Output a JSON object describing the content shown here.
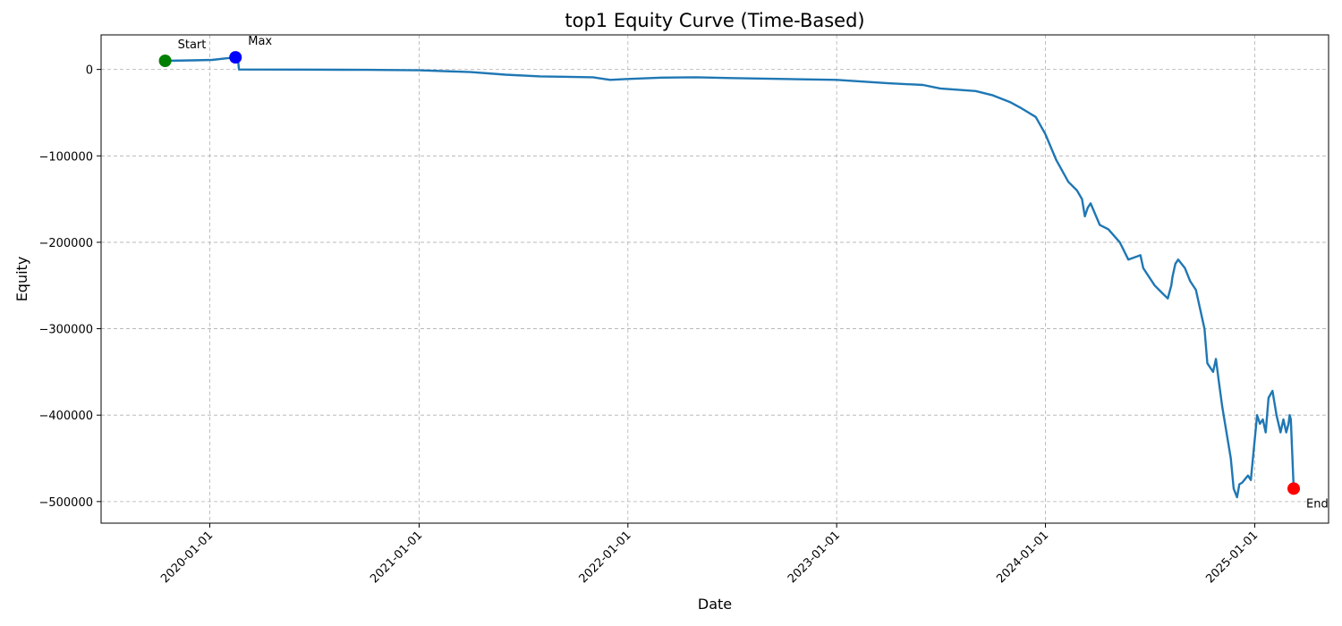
{
  "chart_data": {
    "type": "line",
    "title": "top1 Equity Curve (Time-Based)",
    "xlabel": "Date",
    "ylabel": "Equity",
    "xlim": [
      "2019-06-25",
      "2025-05-10"
    ],
    "ylim": [
      -525000,
      40000
    ],
    "grid": true,
    "x_ticks": [
      "2020-01-01",
      "2021-01-01",
      "2022-01-01",
      "2023-01-01",
      "2024-01-01",
      "2025-01-01"
    ],
    "y_ticks": [
      0,
      -100000,
      -200000,
      -300000,
      -400000,
      -500000
    ],
    "y_tick_labels": [
      "0",
      "−100000",
      "−200000",
      "−300000",
      "−400000",
      "−500000"
    ],
    "line_color": "#1f77b4",
    "series": [
      {
        "x": [
          "2019-10-15",
          "2019-12-01",
          "2020-01-05",
          "2020-02-01",
          "2020-02-19",
          "2020-02-21",
          "2020-06-01",
          "2020-10-01",
          "2021-01-01",
          "2021-04-01",
          "2021-06-01",
          "2021-08-01",
          "2021-11-01",
          "2021-12-01",
          "2022-01-01",
          "2022-03-01",
          "2022-05-01",
          "2022-07-01",
          "2022-10-01",
          "2023-01-01",
          "2023-02-15",
          "2023-04-01",
          "2023-06-01",
          "2023-07-01",
          "2023-09-01",
          "2023-10-01",
          "2023-11-01",
          "2023-11-20",
          "2023-12-15",
          "2024-01-01",
          "2024-01-20",
          "2024-02-10",
          "2024-02-25",
          "2024-03-05",
          "2024-03-10",
          "2024-03-15",
          "2024-03-20",
          "2024-04-05",
          "2024-04-20",
          "2024-05-10",
          "2024-05-25",
          "2024-06-15",
          "2024-06-20",
          "2024-07-10",
          "2024-07-25",
          "2024-08-02",
          "2024-08-08",
          "2024-08-10",
          "2024-08-15",
          "2024-08-20",
          "2024-09-01",
          "2024-09-10",
          "2024-09-20",
          "2024-09-25",
          "2024-10-05",
          "2024-10-10",
          "2024-10-20",
          "2024-10-25",
          "2024-10-30",
          "2024-11-05",
          "2024-11-10",
          "2024-11-15",
          "2024-11-20",
          "2024-11-25",
          "2024-12-01",
          "2024-12-05",
          "2024-12-10",
          "2024-12-20",
          "2024-12-25",
          "2025-01-05",
          "2025-01-10",
          "2025-01-15",
          "2025-01-20",
          "2025-01-25",
          "2025-02-01",
          "2025-02-08",
          "2025-02-15",
          "2025-02-20",
          "2025-02-25",
          "2025-03-01",
          "2025-03-03",
          "2025-03-05",
          "2025-03-10"
        ],
        "y": [
          10000,
          10500,
          11000,
          13000,
          14000,
          0,
          -200,
          -500,
          -1000,
          -3000,
          -6000,
          -8000,
          -9000,
          -12000,
          -11000,
          -9500,
          -9000,
          -10000,
          -11000,
          -12000,
          -14000,
          -16000,
          -18000,
          -22000,
          -25000,
          -30000,
          -38000,
          -45000,
          -55000,
          -75000,
          -105000,
          -130000,
          -140000,
          -150000,
          -170000,
          -160000,
          -155000,
          -180000,
          -185000,
          -200000,
          -220000,
          -215000,
          -230000,
          -250000,
          -260000,
          -265000,
          -250000,
          -240000,
          -225000,
          -220000,
          -230000,
          -245000,
          -255000,
          -270000,
          -300000,
          -340000,
          -350000,
          -335000,
          -360000,
          -390000,
          -410000,
          -430000,
          -450000,
          -485000,
          -495000,
          -480000,
          -478000,
          -470000,
          -475000,
          -400000,
          -410000,
          -405000,
          -420000,
          -380000,
          -372000,
          -400000,
          -420000,
          -405000,
          -420000,
          -410000,
          -400000,
          -405000,
          -485000
        ]
      }
    ],
    "markers": [
      {
        "label": "Start",
        "x": "2019-10-15",
        "y": 10000,
        "color": "#008000"
      },
      {
        "label": "Max",
        "x": "2020-02-15",
        "y": 14000,
        "color": "#0000ff"
      },
      {
        "label": "End",
        "x": "2025-03-10",
        "y": -485000,
        "color": "#ff0000"
      }
    ]
  }
}
